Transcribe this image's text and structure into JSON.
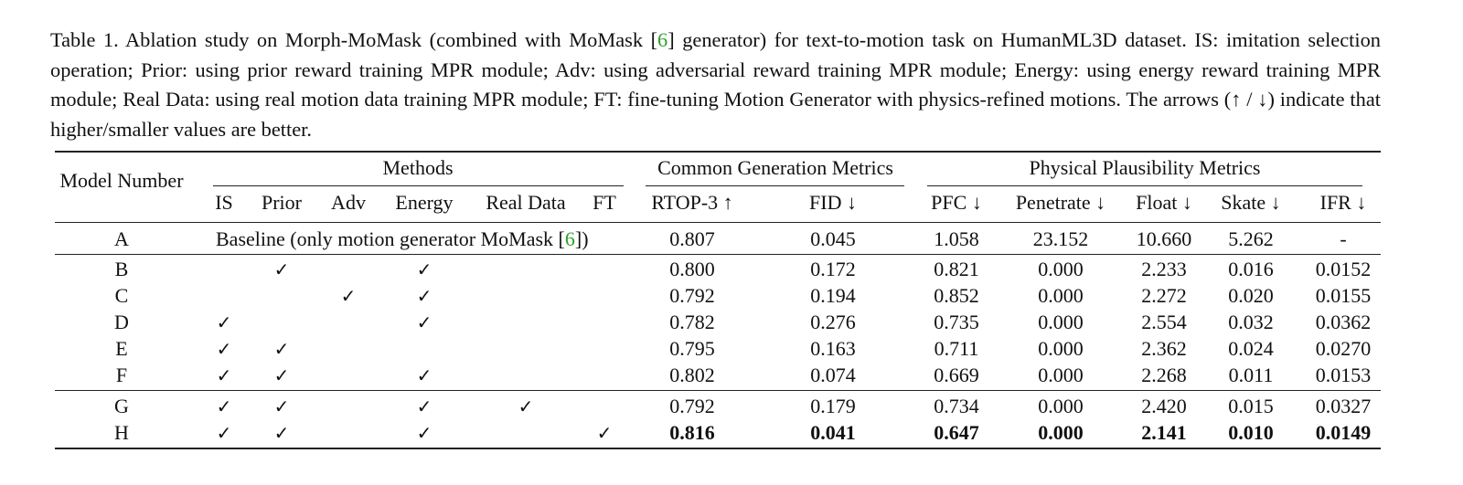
{
  "caption": {
    "lines": [
      "Table 1.  Ablation study on Morph-MoMask (combined with MoMask [",
      "6",
      "] generator) for text-to-motion task on HumanML3D dataset. IS: imitation selection operation; Prior: using prior reward training MPR module; Adv: using adversarial reward training MPR module; Energy: using energy reward training MPR module; Real Data: using real motion data training MPR module; FT: fine-tuning Motion Generator with physics-refined motions. The arrows (↑ / ↓) indicate that higher/smaller values are better."
    ]
  },
  "table": {
    "model_header": "Model Number",
    "groups": {
      "methods": "Methods",
      "common": "Common Generation Metrics",
      "physical": "Physical Plausibility Metrics"
    },
    "columns": [
      "IS",
      "Prior",
      "Adv",
      "Energy",
      "Real Data",
      "FT",
      "RTOP-3 ↑",
      "FID ↓",
      "PFC ↓",
      "Penetrate ↓",
      "Float ↓",
      "Skate ↓",
      "IFR ↓"
    ],
    "baseline": {
      "model": "A",
      "text_pre": "Baseline (only motion generator MoMask [",
      "ref": "6",
      "text_post": "])",
      "metrics": [
        "0.807",
        "0.045",
        "1.058",
        "23.152",
        "10.660",
        "5.262",
        "-"
      ]
    },
    "rows": [
      {
        "model": "B",
        "checks": [
          "",
          "✓",
          "",
          "✓",
          "",
          ""
        ],
        "metrics": [
          "0.800",
          "0.172",
          "0.821",
          "0.000",
          "2.233",
          "0.016",
          "0.0152"
        ],
        "bold": false
      },
      {
        "model": "C",
        "checks": [
          "",
          "",
          "✓",
          "✓",
          "",
          ""
        ],
        "metrics": [
          "0.792",
          "0.194",
          "0.852",
          "0.000",
          "2.272",
          "0.020",
          "0.0155"
        ],
        "bold": false
      },
      {
        "model": "D",
        "checks": [
          "✓",
          "",
          "",
          "✓",
          "",
          ""
        ],
        "metrics": [
          "0.782",
          "0.276",
          "0.735",
          "0.000",
          "2.554",
          "0.032",
          "0.0362"
        ],
        "bold": false
      },
      {
        "model": "E",
        "checks": [
          "✓",
          "✓",
          "",
          "",
          "",
          ""
        ],
        "metrics": [
          "0.795",
          "0.163",
          "0.711",
          "0.000",
          "2.362",
          "0.024",
          "0.0270"
        ],
        "bold": false
      },
      {
        "model": "F",
        "checks": [
          "✓",
          "✓",
          "",
          "✓",
          "",
          ""
        ],
        "metrics": [
          "0.802",
          "0.074",
          "0.669",
          "0.000",
          "2.268",
          "0.011",
          "0.0153"
        ],
        "bold": false
      },
      {
        "model": "G",
        "checks": [
          "✓",
          "✓",
          "",
          "✓",
          "✓",
          ""
        ],
        "metrics": [
          "0.792",
          "0.179",
          "0.734",
          "0.000",
          "2.420",
          "0.015",
          "0.0327"
        ],
        "bold": false
      },
      {
        "model": "H",
        "checks": [
          "✓",
          "✓",
          "",
          "✓",
          "",
          "✓"
        ],
        "metrics": [
          "0.816",
          "0.041",
          "0.647",
          "0.000",
          "2.141",
          "0.010",
          "0.0149"
        ],
        "bold": true
      }
    ]
  }
}
